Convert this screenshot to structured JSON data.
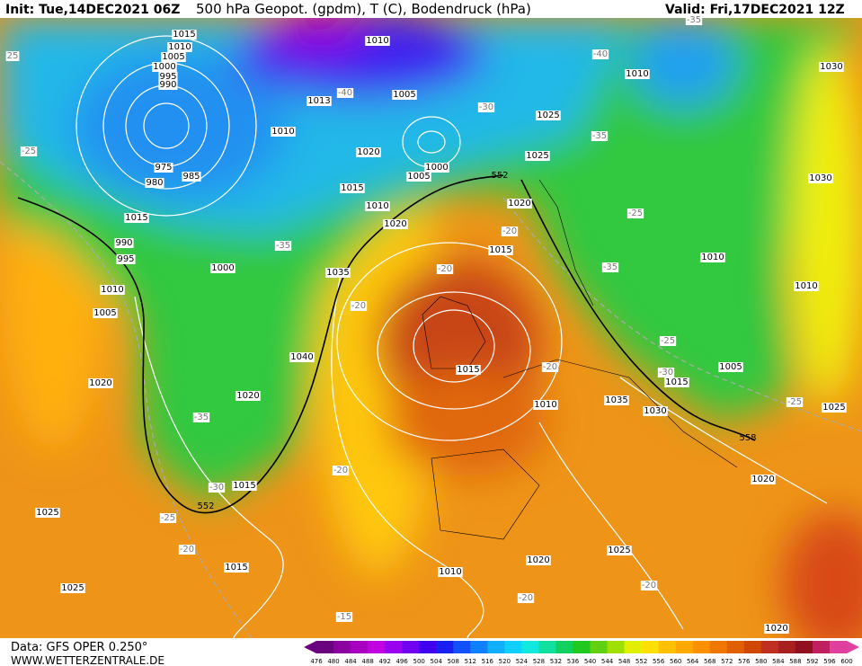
{
  "header": {
    "init": "Init: Tue,14DEC2021 06Z",
    "title": "500 hPa Geopot. (gpdm), T (C), Bodendruck (hPa)",
    "valid": "Valid: Fri,17DEC2021 12Z"
  },
  "footer": {
    "source": "Data: GFS OPER 0.250°",
    "website": "WWW.WETTERZENTRALE.DE"
  },
  "scale": {
    "labels": [
      476,
      480,
      484,
      488,
      492,
      496,
      500,
      504,
      508,
      512,
      516,
      520,
      524,
      528,
      532,
      536,
      540,
      544,
      548,
      552,
      556,
      560,
      564,
      568,
      572,
      576,
      580,
      584,
      588,
      592,
      596,
      600
    ],
    "colors": [
      "#6a0080",
      "#8a00a0",
      "#a800c0",
      "#c000e0",
      "#9a00f0",
      "#7000f0",
      "#4000f0",
      "#1a20f0",
      "#1050ff",
      "#1080ff",
      "#10b0ff",
      "#10d0ff",
      "#10e8e0",
      "#10e0a0",
      "#10d060",
      "#20c820",
      "#60d010",
      "#a0e000",
      "#e0f000",
      "#ffe000",
      "#ffc000",
      "#ffa800",
      "#ff9000",
      "#f07800",
      "#e06000",
      "#d04800",
      "#c03020",
      "#a82020",
      "#901020",
      "#c02060",
      "#e040a0"
    ]
  },
  "isobar_labels": [
    "1015",
    "1010",
    "1005",
    "1000",
    "995",
    "990",
    "1010",
    "1030",
    "1010",
    "1005",
    "1013",
    "1025",
    "1010",
    "1020",
    "1000",
    "1005",
    "1025",
    "975",
    "980",
    "985",
    "1015",
    "1010",
    "1020",
    "1030",
    "1015",
    "990",
    "995",
    "1000",
    "1015",
    "1035",
    "1010",
    "1005",
    "1010",
    "1010",
    "1015",
    "1040",
    "1005",
    "1015",
    "1020",
    "1020",
    "1010",
    "1035",
    "1030",
    "1025",
    "1015",
    "1010",
    "1020",
    "1025",
    "1025",
    "1015",
    "1020",
    "1025",
    "1020",
    "1020"
  ],
  "temperature_labels": [
    "-25",
    "-35",
    "-40",
    "-30",
    "-40",
    "-35",
    "-35",
    "-25",
    "-35",
    "-20",
    "-20",
    "-20",
    "-20",
    "-25",
    "-30",
    "-25",
    "-35",
    "-30",
    "-25",
    "-20",
    "-20",
    "-20",
    "-20",
    "-15",
    "25"
  ],
  "height_labels": [
    "552",
    "552",
    "558"
  ]
}
